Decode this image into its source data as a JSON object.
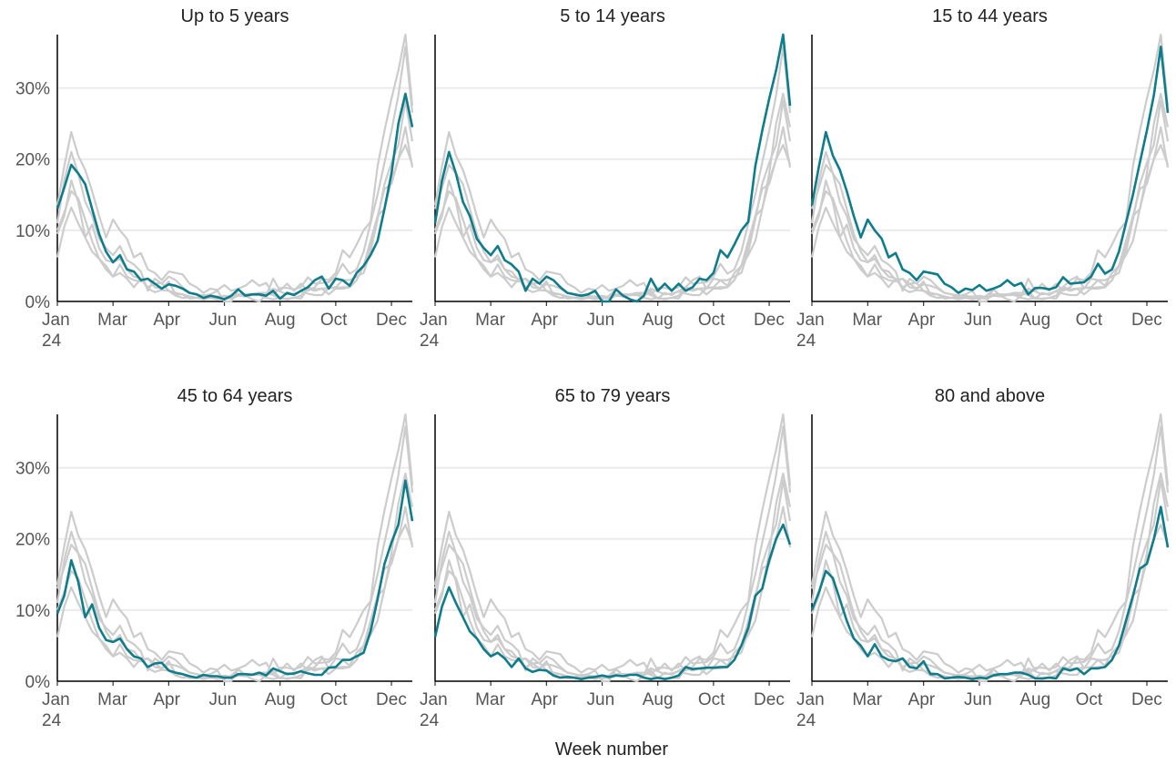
{
  "chart_data": {
    "type": "line",
    "facet_by_series": true,
    "xlabel": "Week number",
    "x": [
      1,
      2,
      3,
      4,
      5,
      6,
      7,
      8,
      9,
      10,
      11,
      12,
      13,
      14,
      15,
      16,
      17,
      18,
      19,
      20,
      21,
      22,
      23,
      24,
      25,
      26,
      27,
      28,
      29,
      30,
      31,
      32,
      33,
      34,
      35,
      36,
      37,
      38,
      39,
      40,
      41,
      42,
      43,
      44,
      45,
      46,
      47,
      48,
      49,
      50,
      51,
      52
    ],
    "xlim": [
      1,
      52
    ],
    "xticks": [
      {
        "value": 1,
        "label": "Jan\n24"
      },
      {
        "value": 9,
        "label": "Mar"
      },
      {
        "value": 17,
        "label": "Apr"
      },
      {
        "value": 25,
        "label": "Jun"
      },
      {
        "value": 33,
        "label": "Aug"
      },
      {
        "value": 41,
        "label": "Oct"
      },
      {
        "value": 49,
        "label": "Dec"
      }
    ],
    "ylim": [
      0,
      37.5
    ],
    "yticks": [
      {
        "value": 0,
        "label": "0%"
      },
      {
        "value": 10,
        "label": "10%"
      },
      {
        "value": 20,
        "label": "20%"
      },
      {
        "value": 30,
        "label": "30%"
      }
    ],
    "grid": true,
    "other_color": "#cccccc",
    "series": [
      {
        "name": "Up to 5 years",
        "color": "#0e7c8b",
        "values": [
          13,
          16,
          19.2,
          18,
          16.5,
          13,
          9.5,
          7,
          5.5,
          6.5,
          4.5,
          4.2,
          3,
          3.2,
          2.5,
          1.8,
          2.4,
          2.2,
          1.8,
          1.2,
          1,
          0.5,
          0.8,
          0.6,
          0.3,
          0.8,
          1.7,
          0.8,
          1,
          1,
          0.8,
          1.5,
          0.4,
          1.2,
          0.9,
          1.5,
          2,
          3,
          3.5,
          1.8,
          3.2,
          3,
          2.2,
          4,
          5,
          6.5,
          8.5,
          13,
          18,
          25,
          29.2,
          24.5
        ]
      },
      {
        "name": "5 to 14 years",
        "color": "#0e7c8b",
        "values": [
          11,
          17,
          21,
          18,
          14,
          12,
          8.8,
          7.5,
          6.5,
          7.8,
          5.8,
          5.2,
          4.2,
          1.5,
          3.2,
          2.5,
          3.5,
          3,
          2,
          1.2,
          1,
          0.8,
          1,
          1.5,
          0,
          0,
          1.7,
          0.8,
          0.3,
          0,
          0.8,
          3.2,
          1.5,
          2.5,
          1.5,
          2.5,
          1.5,
          2,
          3.2,
          3,
          4,
          7.2,
          6.2,
          8,
          10,
          11.2,
          19,
          24,
          28.5,
          32.5,
          37.5,
          27.5
        ]
      },
      {
        "name": "15 to 44 years",
        "color": "#0e7c8b",
        "values": [
          13.5,
          19,
          23.8,
          20.5,
          18.5,
          15.5,
          12,
          9,
          11.5,
          10,
          8.8,
          6.2,
          6.8,
          4.5,
          4,
          3,
          4.2,
          4,
          3.8,
          2.5,
          2,
          1.2,
          1.8,
          1.6,
          2.3,
          1.5,
          1.8,
          2.2,
          3,
          2.2,
          2.6,
          1,
          1.9,
          1.9,
          1.7,
          2,
          3.4,
          2.5,
          2.6,
          2.7,
          3.5,
          5.3,
          3.9,
          4.5,
          7,
          11,
          15,
          19.5,
          24,
          29,
          35.8,
          26.5
        ]
      },
      {
        "name": "45 to 64 years",
        "color": "#0e7c8b",
        "values": [
          9.5,
          12,
          17,
          14,
          9,
          10.8,
          7.5,
          5.8,
          5.5,
          6,
          4.5,
          3.5,
          3.2,
          2,
          2.5,
          2.6,
          1.5,
          1.2,
          1,
          0.7,
          0.5,
          0.9,
          0.7,
          0.7,
          0.5,
          0.5,
          1,
          1,
          0.9,
          1.2,
          0.8,
          1.8,
          1.4,
          1,
          1.1,
          1.4,
          1.1,
          0.9,
          0.9,
          1.9,
          2,
          3,
          3,
          3.5,
          4,
          7,
          11.5,
          16.5,
          19.5,
          22,
          28.2,
          22.5
        ]
      },
      {
        "name": "65 to 79 years",
        "color": "#0e7c8b",
        "values": [
          6.2,
          10.5,
          13.2,
          11,
          9,
          7,
          6,
          4.5,
          3.5,
          4,
          3.2,
          2,
          3.2,
          1.8,
          1.3,
          1.6,
          1.5,
          0.8,
          0.5,
          0.6,
          0.5,
          0.3,
          0.5,
          0.6,
          0.8,
          0.6,
          0.8,
          0.7,
          0.9,
          0.9,
          0.5,
          0.3,
          0.5,
          0.3,
          0.5,
          0.8,
          2,
          1.7,
          1.8,
          1.9,
          1.9,
          2,
          2,
          3,
          5,
          7.5,
          12,
          13,
          17,
          20,
          22,
          19.2
        ]
      },
      {
        "name": "80 and above",
        "color": "#0e7c8b",
        "values": [
          10,
          12.5,
          15.5,
          14.5,
          11.5,
          8.5,
          6,
          5,
          3.5,
          5.2,
          3.5,
          3,
          2.8,
          3.2,
          2,
          1.8,
          2.8,
          1,
          1,
          0.4,
          0.5,
          0.6,
          0.5,
          0.3,
          0.5,
          0.4,
          0.8,
          1,
          1,
          1.2,
          1.2,
          0.9,
          0.4,
          0.4,
          0.5,
          0.4,
          1.8,
          1.5,
          1.8,
          1,
          1.8,
          1.8,
          2,
          3,
          5,
          8.5,
          12,
          15.8,
          16.5,
          20,
          24.5,
          18.8
        ]
      }
    ]
  }
}
